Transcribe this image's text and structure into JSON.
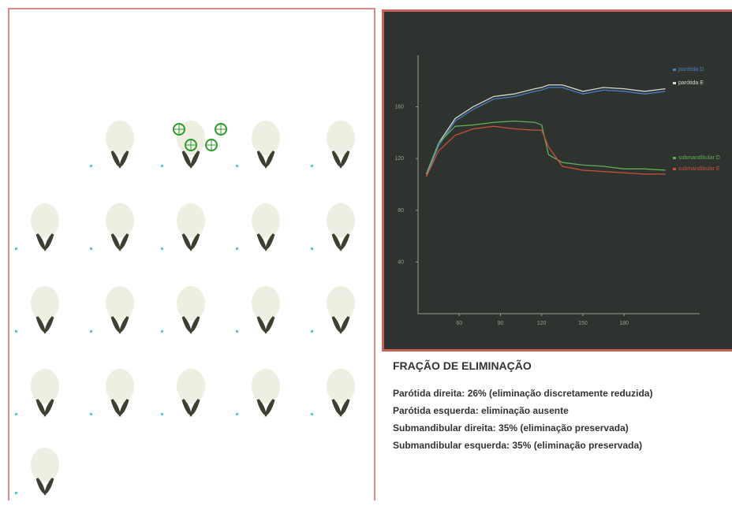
{
  "report": {
    "heading": "FRAÇÃO DE ELIMINAÇÃO",
    "lines": [
      {
        "label": "Parótida direita:",
        "text": "26% (eliminação discretamente reduzida)"
      },
      {
        "label": "Parótida esquerda:",
        "text": "eliminação ausente"
      },
      {
        "label": "Submandibular direita:",
        "text": "35% (eliminação preservada)"
      },
      {
        "label": "Submandibular esquerda:",
        "text": "35% (eliminação preservada)"
      }
    ]
  },
  "chart_data": {
    "type": "line",
    "x": [
      36,
      45,
      57,
      70,
      85,
      100,
      115,
      120,
      125,
      135,
      150,
      165,
      180,
      195,
      210
    ],
    "series": [
      {
        "name": "parótida D",
        "color": "#4a7fc0",
        "values": [
          106,
          130,
          149,
          158,
          166,
          168,
          172,
          173,
          175,
          175,
          170,
          173,
          172,
          170,
          172
        ]
      },
      {
        "name": "parótida E",
        "color": "#d8d8d0",
        "values": [
          108,
          132,
          151,
          160,
          168,
          170,
          174,
          175,
          177,
          177,
          172,
          175,
          174,
          172,
          174
        ]
      },
      {
        "name": "submandibular D",
        "color": "#5fae5a",
        "values": [
          108,
          132,
          145,
          146,
          148,
          149,
          148,
          146,
          123,
          117,
          115,
          114,
          112,
          112,
          111
        ]
      },
      {
        "name": "submandibular E",
        "color": "#c8503c",
        "values": [
          106,
          126,
          138,
          143,
          145,
          143,
          142,
          142,
          129,
          114,
          111,
          110,
          109,
          108,
          108
        ]
      }
    ],
    "xlim": [
      30,
      235
    ],
    "ylim": [
      0,
      200
    ],
    "xticks": [
      60,
      90,
      120,
      150,
      180
    ],
    "yticks": [
      40,
      80,
      120,
      160
    ]
  }
}
